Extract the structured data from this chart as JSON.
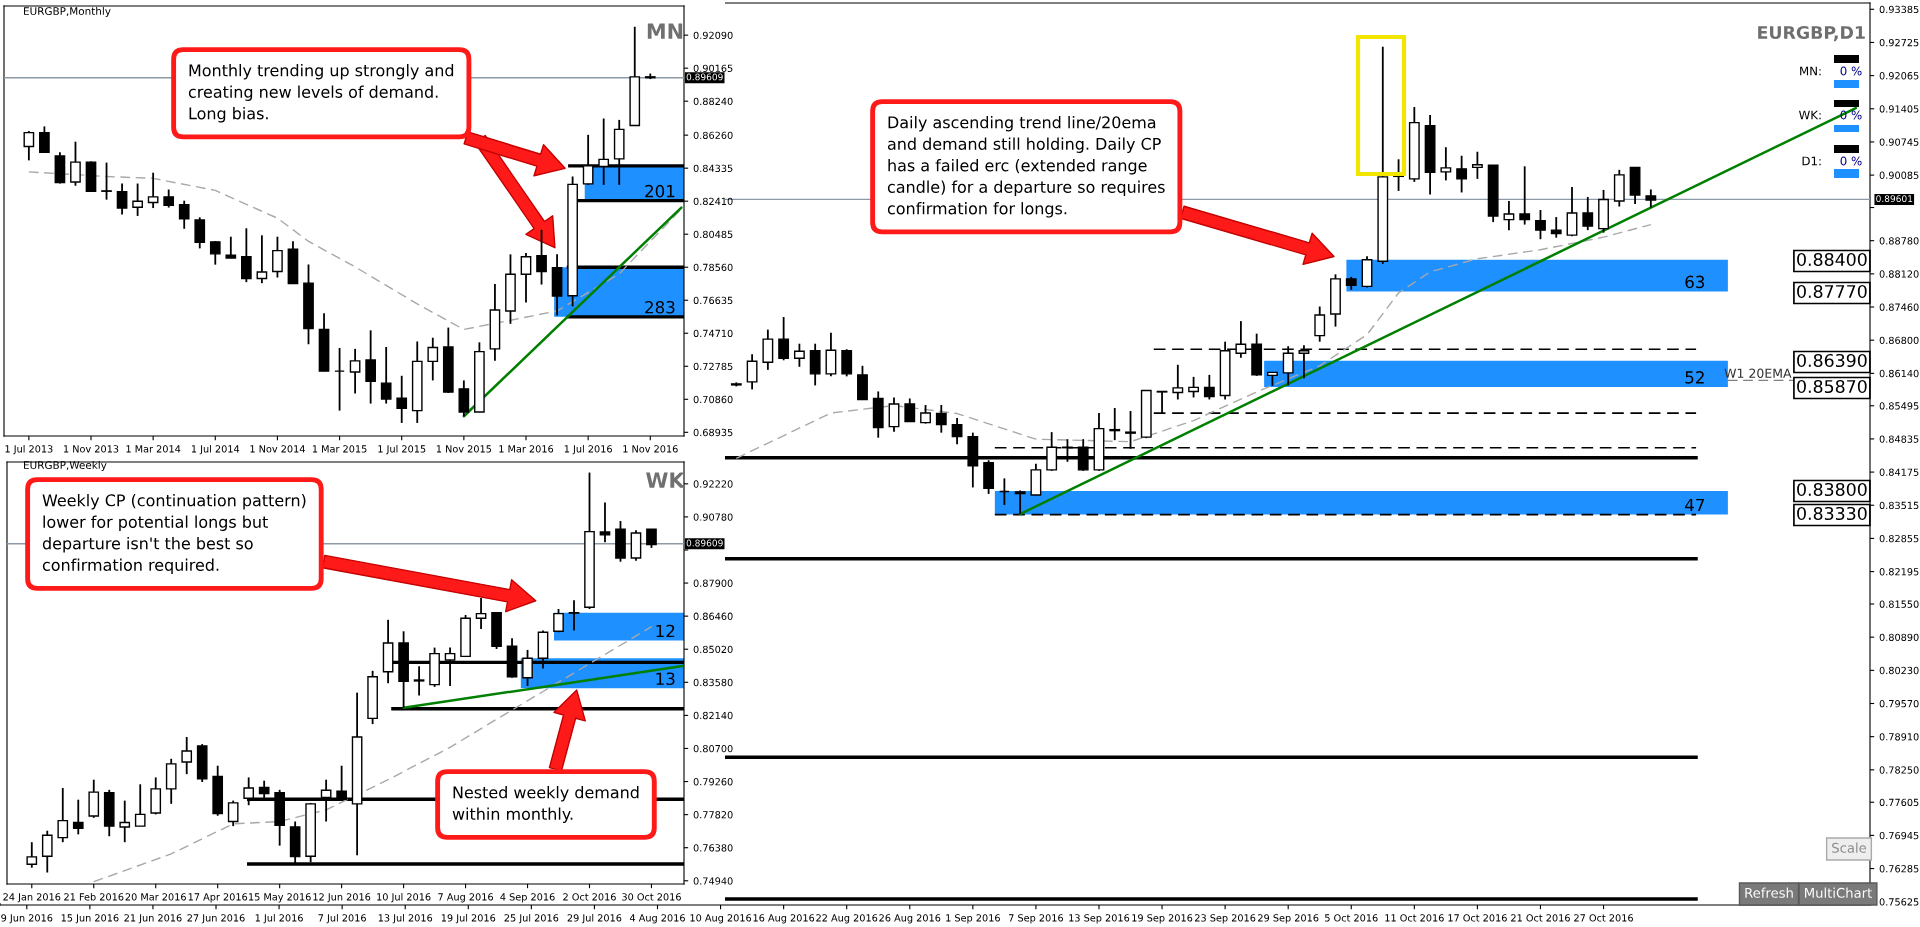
{
  "chart_data": [
    {
      "type": "candlestick",
      "title": "EURGBP,Monthly",
      "categories": [
        "1 Jul 2013",
        null,
        null,
        null,
        "1 Nov 2013",
        null,
        null,
        null,
        "1 Mar 2014",
        null,
        null,
        null,
        "1 Jul 2014",
        null,
        null,
        null,
        "1 Nov 2014",
        null,
        null,
        null,
        "1 Mar 2015",
        null,
        null,
        null,
        "1 Jul 2015",
        null,
        null,
        null,
        "1 Nov 2015",
        null,
        null,
        null,
        "1 Mar 2016",
        null,
        null,
        null,
        "1 Jul 2016",
        null,
        null,
        null,
        "1 Nov 2016",
        null,
        null
      ],
      "ohlc": [
        [
          0.856,
          0.865,
          0.8479,
          0.8641
        ],
        [
          0.8641,
          0.8677,
          0.8526,
          0.8526
        ],
        [
          0.8505,
          0.8526,
          0.8344,
          0.835
        ],
        [
          0.8353,
          0.8588,
          0.8331,
          0.8469
        ],
        [
          0.8469,
          0.8472,
          0.8296,
          0.8299
        ],
        [
          0.8301,
          0.8466,
          0.825,
          0.8299
        ],
        [
          0.8296,
          0.8344,
          0.8163,
          0.8201
        ],
        [
          0.8206,
          0.8344,
          0.8155,
          0.8241
        ],
        [
          0.8233,
          0.8407,
          0.8201,
          0.8266
        ],
        [
          0.8266,
          0.8309,
          0.8204,
          0.8217
        ],
        [
          0.822,
          0.8244,
          0.808,
          0.8139
        ],
        [
          0.8131,
          0.8147,
          0.7966,
          0.8001
        ],
        [
          0.8004,
          0.8009,
          0.7871,
          0.7934
        ],
        [
          0.7926,
          0.8034,
          0.7909,
          0.791
        ],
        [
          0.7918,
          0.8083,
          0.7769,
          0.779
        ],
        [
          0.779,
          0.8042,
          0.7763,
          0.7828
        ],
        [
          0.7831,
          0.8034,
          0.7796,
          0.7953
        ],
        [
          0.7961,
          0.8007,
          0.7758,
          0.7761
        ],
        [
          0.7763,
          0.7872,
          0.7407,
          0.7499
        ],
        [
          0.7493,
          0.7588,
          0.725,
          0.725
        ],
        [
          0.725,
          0.7385,
          0.702,
          0.725
        ],
        [
          0.7245,
          0.738,
          0.712,
          0.731
        ],
        [
          0.7315,
          0.7488,
          0.7061,
          0.7191
        ],
        [
          0.718,
          0.7391,
          0.7061,
          0.7088
        ],
        [
          0.7093,
          0.7223,
          0.6948,
          0.7034
        ],
        [
          0.702,
          0.7423,
          0.6948,
          0.7307
        ],
        [
          0.7307,
          0.7445,
          0.7196,
          0.7388
        ],
        [
          0.7391,
          0.7504,
          0.7123,
          0.7128
        ],
        [
          0.7147,
          0.7196,
          0.6987,
          0.7012
        ],
        [
          0.7012,
          0.7418,
          0.7012,
          0.7364
        ],
        [
          0.738,
          0.7758,
          0.731,
          0.7607
        ],
        [
          0.7601,
          0.7931,
          0.7526,
          0.7815
        ],
        [
          0.7815,
          0.7939,
          0.765,
          0.7917
        ],
        [
          0.7923,
          0.8074,
          0.7755,
          0.7831
        ],
        [
          0.7853,
          0.7931,
          0.7574,
          0.7688
        ],
        [
          0.769,
          0.8385,
          0.7628,
          0.8339
        ],
        [
          0.8342,
          0.8628,
          0.8336,
          0.8447
        ],
        [
          0.8444,
          0.8723,
          0.8336,
          0.8485
        ],
        [
          0.8488,
          0.8715,
          0.8336,
          0.866
        ],
        [
          0.8682,
          0.9258,
          0.8682,
          0.8966
        ],
        [
          0.8966,
          0.8985,
          0.8953,
          0.8961
        ],
        null,
        null
      ],
      "series": [
        {
          "type": "line",
          "color": "#a8a8a8",
          "line_style": "dashed",
          "values": [
            0.8412,
            null,
            null,
            null,
            null,
            0.8385,
            null,
            null,
            0.8374,
            null,
            null,
            null,
            0.8304,
            null,
            null,
            null,
            0.8142,
            null,
            0.8007,
            null,
            null,
            0.7858,
            null,
            null,
            null,
            0.7642,
            null,
            null,
            0.7493,
            null,
            null,
            0.7547,
            null,
            null,
            0.7601,
            null,
            null,
            null,
            0.7817,
            null,
            null,
            null,
            0.8196
          ]
        },
        {
          "type": "line",
          "color": "#008000",
          "values": [
            null,
            null,
            null,
            null,
            null,
            null,
            null,
            null,
            null,
            null,
            null,
            null,
            null,
            null,
            null,
            null,
            null,
            null,
            null,
            null,
            null,
            null,
            null,
            null,
            null,
            null,
            null,
            null,
            0.6987,
            null,
            null,
            null,
            null,
            null,
            null,
            null,
            null,
            null,
            null,
            null,
            null,
            null,
            0.8204
          ]
        }
      ],
      "ylim": [
        0.6872,
        0.9379
      ],
      "yticks": [
        {
          "value": 0.9209,
          "label": "0.92090"
        },
        0.90165,
        {
          "value": 0.8824,
          "label": "0.88240"
        },
        {
          "value": 0.8626,
          "label": "0.86260"
        },
        0.84335,
        {
          "value": 0.8241,
          "label": "0.82410"
        },
        0.80485,
        {
          "value": 0.7856,
          "label": "0.78560"
        },
        0.76635,
        {
          "value": 0.7471,
          "label": "0.74710"
        },
        0.72785,
        {
          "value": 0.7086,
          "label": "0.70860"
        },
        0.68935
      ],
      "bands": [
        {
          "axis": "y",
          "from": 0.8244,
          "to": 0.8447,
          "label": "201",
          "color": "#1e90ff"
        },
        {
          "axis": "y",
          "from": 0.7567,
          "to": 0.7856,
          "label": "283",
          "color": "#1e90ff"
        }
      ],
      "ref_lines": [
        {
          "axis": "y",
          "value": 0.89609,
          "label": "0.89609",
          "color": "#8c99a6"
        },
        {
          "axis": "y",
          "value": 0.8447,
          "color": "#000000"
        },
        {
          "axis": "y",
          "value": 0.8244,
          "color": "#000000"
        },
        {
          "axis": "y",
          "value": 0.7856,
          "color": "#000000"
        },
        {
          "axis": "y",
          "value": 0.7567,
          "color": "#000000"
        }
      ],
      "annotations": [
        "MN",
        "Monthly trending up strongly and\ncreating new levels of demand.\nLong bias."
      ]
    },
    {
      "type": "candlestick",
      "title": "EURGBP,Weekly",
      "categories": [
        "24 Jan 2016",
        null,
        null,
        null,
        "21 Feb 2016",
        null,
        null,
        null,
        "20 Mar 2016",
        null,
        null,
        null,
        "17 Apr 2016",
        null,
        null,
        null,
        "15 May 2016",
        null,
        null,
        null,
        "12 Jun 2016",
        null,
        null,
        null,
        "10 Jul 2016",
        null,
        null,
        null,
        "7 Aug 2016",
        null,
        null,
        null,
        "4 Sep 2016",
        null,
        null,
        null,
        "2 Oct 2016",
        null,
        null,
        null,
        "30 Oct 2016",
        null,
        null
      ],
      "ohlc": [
        [
          0.7566,
          0.7662,
          0.7551,
          0.7598
        ],
        [
          0.7601,
          0.7712,
          0.753,
          0.7692
        ],
        [
          0.7682,
          0.7898,
          0.7662,
          0.7756
        ],
        [
          0.7748,
          0.7847,
          0.7696,
          0.7722
        ],
        [
          0.7776,
          0.7934,
          0.7768,
          0.788
        ],
        [
          0.7878,
          0.789,
          0.7688,
          0.7732
        ],
        [
          0.7728,
          0.7843,
          0.7662,
          0.7748
        ],
        [
          0.7732,
          0.7914,
          0.7732,
          0.7783
        ],
        [
          0.7789,
          0.7944,
          0.7783,
          0.7894
        ],
        [
          0.7894,
          0.8025,
          0.7829,
          0.8003
        ],
        [
          0.8011,
          0.812,
          0.7958,
          0.8059
        ],
        [
          0.8081,
          0.8089,
          0.7924,
          0.7938
        ],
        [
          0.7948,
          0.7995,
          0.7777,
          0.7787
        ],
        [
          0.7752,
          0.7843,
          0.7732,
          0.7833
        ],
        [
          0.7853,
          0.7944,
          0.7823,
          0.7898
        ],
        [
          0.79,
          0.793,
          0.7853,
          0.7874
        ],
        [
          0.7878,
          0.789,
          0.7647,
          0.7736
        ],
        [
          0.7728,
          0.7752,
          0.7567,
          0.7599
        ],
        [
          0.7601,
          0.7833,
          0.7575,
          0.7829
        ],
        [
          0.7857,
          0.7934,
          0.7752,
          0.7888
        ],
        [
          0.7884,
          0.7995,
          0.7843,
          0.7849
        ],
        [
          0.7829,
          0.8313,
          0.7605,
          0.812
        ],
        [
          0.8201,
          0.8408,
          0.8176,
          0.8382
        ],
        [
          0.8404,
          0.863,
          0.8354,
          0.8529
        ],
        [
          0.8529,
          0.858,
          0.8247,
          0.8362
        ],
        [
          0.8364,
          0.8428,
          0.8301,
          0.8368
        ],
        [
          0.8348,
          0.8509,
          0.8338,
          0.8483
        ],
        [
          0.8455,
          0.8509,
          0.8342,
          0.8483
        ],
        [
          0.8471,
          0.8651,
          0.8469,
          0.8637
        ],
        [
          0.8637,
          0.8725,
          0.859,
          0.8657
        ],
        [
          0.8661,
          0.8661,
          0.8503,
          0.8515
        ],
        [
          0.8515,
          0.855,
          0.8378,
          0.8382
        ],
        [
          0.8378,
          0.8499,
          0.8342,
          0.8463
        ],
        [
          0.8463,
          0.8584,
          0.8418,
          0.8576
        ],
        [
          0.858,
          0.8677,
          0.8576,
          0.8657
        ],
        [
          0.8659,
          0.8715,
          0.8584,
          0.8661
        ],
        [
          0.8685,
          0.9271,
          0.8677,
          0.9014
        ],
        [
          0.9012,
          0.9141,
          0.8968,
          0.9
        ],
        [
          0.9024,
          0.906,
          0.8883,
          0.8899
        ],
        [
          0.8899,
          0.902,
          0.8887,
          0.9008
        ],
        [
          0.9024,
          0.9024,
          0.8943,
          0.8958
        ],
        null,
        null
      ],
      "series": [
        {
          "type": "line",
          "color": "#a8a8a8",
          "line_style": "dashed",
          "values": [
            null,
            null,
            null,
            null,
            0.749,
            null,
            null,
            null,
            null,
            0.7611,
            null,
            null,
            null,
            0.7742,
            null,
            null,
            0.7752,
            null,
            null,
            0.7803,
            null,
            null,
            null,
            0.7934,
            null,
            null,
            null,
            0.8075,
            null,
            null,
            0.8197,
            null,
            null,
            0.8318,
            null,
            null,
            0.8439,
            null,
            null,
            null,
            0.86,
            null,
            null
          ]
        },
        {
          "type": "line",
          "color": "#008000",
          "values": [
            null,
            null,
            null,
            null,
            null,
            null,
            null,
            null,
            null,
            null,
            null,
            null,
            null,
            null,
            null,
            null,
            null,
            null,
            null,
            null,
            null,
            null,
            null,
            null,
            0.8247,
            null,
            null,
            null,
            null,
            null,
            null,
            null,
            null,
            null,
            null,
            null,
            null,
            null,
            null,
            null,
            null,
            null,
            0.8429
          ]
        }
      ],
      "ylim": [
        0.748,
        0.9317
      ],
      "yticks": [
        {
          "value": 0.9222,
          "label": "0.92220"
        },
        {
          "value": 0.9078,
          "label": "0.90780"
        },
        {
          "value": 0.8934,
          "label": null
        },
        {
          "value": 0.879,
          "label": "0.87900"
        },
        {
          "value": 0.8646,
          "label": "0.86460"
        },
        {
          "value": 0.8502,
          "label": "0.85020"
        },
        {
          "value": 0.8358,
          "label": "0.83580"
        },
        {
          "value": 0.8214,
          "label": "0.82140"
        },
        {
          "value": 0.807,
          "label": "0.80700"
        },
        {
          "value": 0.7926,
          "label": "0.79260"
        },
        {
          "value": 0.7782,
          "label": "0.77820"
        },
        {
          "value": 0.7638,
          "label": "0.76380"
        },
        {
          "value": 0.7494,
          "label": "0.74940"
        }
      ],
      "bands": [
        {
          "axis": "y",
          "from": 0.854,
          "to": 0.8661,
          "label": "12",
          "color": "#1e90ff"
        },
        {
          "axis": "y",
          "from": 0.8332,
          "to": 0.8463,
          "label": "13",
          "color": "#1e90ff"
        }
      ],
      "ref_lines": [
        {
          "axis": "y",
          "value": 0.89609,
          "label": "0.89609",
          "color": "#8c99a6"
        },
        {
          "axis": "y",
          "value": 0.8445,
          "color": "#000000"
        },
        {
          "axis": "y",
          "value": 0.8243,
          "color": "#000000"
        },
        {
          "axis": "y",
          "value": 0.7849,
          "color": "#000000"
        },
        {
          "axis": "y",
          "value": 0.7567,
          "color": "#000000"
        }
      ],
      "annotations": [
        "WK",
        "Weekly CP (continuation pattern)\nlower for potential longs but\ndeparture isn't the best so\nconfirmation required.",
        "Nested weekly demand\nwithin monthly."
      ]
    },
    {
      "type": "candlestick",
      "title": "EURGBP,D1",
      "categories": [
        "9 Jun 2016",
        null,
        null,
        null,
        "15 Jun 2016",
        null,
        null,
        null,
        "21 Jun 2016",
        null,
        null,
        null,
        "27 Jun 2016",
        null,
        null,
        null,
        "1 Jul 2016",
        null,
        null,
        null,
        "7 Jul 2016",
        null,
        null,
        null,
        "13 Jul 2016",
        null,
        null,
        null,
        "19 Jul 2016",
        null,
        null,
        null,
        "25 Jul 2016",
        null,
        null,
        null,
        "29 Jul 2016",
        null,
        null,
        null,
        "4 Aug 2016",
        null,
        null,
        null,
        "10 Aug 2016",
        null,
        null,
        null,
        "16 Aug 2016",
        null,
        null,
        null,
        "22 Aug 2016",
        null,
        null,
        null,
        "26 Aug 2016",
        null,
        null,
        null,
        "1 Sep 2016",
        null,
        null,
        null,
        "7 Sep 2016",
        null,
        null,
        null,
        "13 Sep 2016",
        null,
        null,
        null,
        "19 Sep 2016",
        null,
        null,
        null,
        "23 Sep 2016",
        null,
        null,
        null,
        "29 Sep 2016",
        null,
        null,
        null,
        "5 Oct 2016",
        null,
        null,
        null,
        "11 Oct 2016",
        null,
        null,
        null,
        "17 Oct 2016",
        null,
        null,
        null,
        "21 Oct 2016",
        null,
        null,
        null,
        "27 Oct 2016",
        null,
        null,
        null,
        null,
        null,
        null,
        null,
        null,
        null,
        null,
        null,
        null,
        null,
        null,
        null,
        null
      ],
      "ohlc": [
        null,
        null,
        null,
        null,
        null,
        null,
        null,
        null,
        null,
        null,
        null,
        null,
        null,
        null,
        null,
        null,
        null,
        null,
        null,
        null,
        null,
        null,
        null,
        null,
        null,
        null,
        null,
        null,
        null,
        null,
        null,
        null,
        null,
        null,
        null,
        null,
        null,
        null,
        null,
        null,
        null,
        null,
        null,
        null,
        null,
        [
          0.8591,
          0.8596,
          0.8588,
          0.8593
        ],
        [
          0.8597,
          0.8652,
          0.8582,
          0.8638
        ],
        [
          0.8636,
          0.8701,
          0.8621,
          0.8682
        ],
        [
          0.8682,
          0.8726,
          0.864,
          0.8644
        ],
        [
          0.8644,
          0.8673,
          0.8627,
          0.8658
        ],
        [
          0.8659,
          0.8673,
          0.859,
          0.8613
        ],
        [
          0.8613,
          0.8695,
          0.8608,
          0.866
        ],
        [
          0.8659,
          0.8662,
          0.8608,
          0.8613
        ],
        [
          0.8611,
          0.8629,
          0.8562,
          0.8562
        ],
        [
          0.8564,
          0.8578,
          0.8486,
          0.8506
        ],
        [
          0.8508,
          0.8566,
          0.8498,
          0.8553
        ],
        [
          0.8553,
          0.8564,
          0.8518,
          0.8518
        ],
        [
          0.8516,
          0.8551,
          0.8514,
          0.8535
        ],
        [
          0.8534,
          0.8551,
          0.8496,
          0.8512
        ],
        [
          0.8512,
          0.8525,
          0.8473,
          0.8488
        ],
        [
          0.8488,
          0.8496,
          0.8387,
          0.843
        ],
        [
          0.8436,
          0.8441,
          0.8374,
          0.8385
        ],
        [
          0.8379,
          0.8405,
          0.8352,
          0.8379
        ],
        [
          0.8378,
          0.8381,
          0.8334,
          0.8375
        ],
        [
          0.8372,
          0.8434,
          0.8372,
          0.8422
        ],
        [
          0.8422,
          0.8497,
          0.842,
          0.8467
        ],
        [
          0.8466,
          0.8483,
          0.8438,
          0.8467
        ],
        [
          0.8467,
          0.8483,
          0.842,
          0.8422
        ],
        [
          0.8422,
          0.8535,
          0.842,
          0.8504
        ],
        [
          0.85,
          0.8545,
          0.8481,
          0.8502
        ],
        [
          0.8495,
          0.8539,
          0.8464,
          0.8497
        ],
        [
          0.8487,
          0.858,
          0.8485,
          0.858
        ],
        [
          0.8578,
          0.8578,
          0.8534,
          0.8577
        ],
        [
          0.8576,
          0.8631,
          0.8562,
          0.8585
        ],
        [
          0.8578,
          0.8607,
          0.8566,
          0.8586
        ],
        [
          0.8586,
          0.8611,
          0.8562,
          0.8568
        ],
        [
          0.857,
          0.8677,
          0.8562,
          0.8659
        ],
        [
          0.8654,
          0.8718,
          0.8645,
          0.8672
        ],
        [
          0.8672,
          0.8693,
          0.8609,
          0.8611
        ],
        [
          0.861,
          0.8616,
          0.8589,
          0.8616
        ],
        [
          0.8615,
          0.8668,
          0.859,
          0.8654
        ],
        [
          0.8654,
          0.867,
          0.8604,
          0.8659
        ],
        [
          0.8689,
          0.8747,
          0.8677,
          0.873
        ],
        [
          0.8732,
          0.8811,
          0.8707,
          0.8802
        ],
        [
          0.8802,
          0.8806,
          0.878,
          0.8789
        ],
        [
          0.8787,
          0.8847,
          0.8785,
          0.884
        ],
        [
          0.8837,
          0.9264,
          0.8832,
          0.9005
        ],
        [
          0.9006,
          0.904,
          0.8977,
          0.9008
        ],
        [
          0.9001,
          0.9144,
          0.8995,
          0.9113
        ],
        [
          0.9107,
          0.9128,
          0.897,
          0.9014
        ],
        [
          0.9015,
          0.9064,
          0.8998,
          0.9023
        ],
        [
          0.9021,
          0.9047,
          0.8974,
          0.9001
        ],
        [
          0.9024,
          0.9055,
          0.9001,
          0.9029
        ],
        [
          0.9028,
          0.9028,
          0.8915,
          0.8927
        ],
        [
          0.892,
          0.8957,
          0.8899,
          0.8931
        ],
        [
          0.8931,
          0.9026,
          0.891,
          0.892
        ],
        [
          0.8918,
          0.8939,
          0.8881,
          0.8899
        ],
        [
          0.8899,
          0.8925,
          0.8884,
          0.8892
        ],
        [
          0.8889,
          0.8985,
          0.8887,
          0.8933
        ],
        [
          0.8933,
          0.8965,
          0.8899,
          0.8907
        ],
        [
          0.8902,
          0.8979,
          0.8894,
          0.896
        ],
        [
          0.8957,
          0.9019,
          0.8946,
          0.9009
        ],
        [
          0.9024,
          0.9024,
          0.8951,
          0.8969
        ],
        [
          0.8967,
          0.898,
          0.8944,
          0.8959
        ],
        null,
        null,
        null,
        null,
        null,
        null,
        null,
        null,
        null,
        null,
        null,
        null,
        null
      ],
      "series": [
        {
          "type": "line",
          "color": "#a8a8a8",
          "line_style": "dashed",
          "values": [
            null,
            null,
            null,
            null,
            null,
            null,
            null,
            null,
            null,
            null,
            null,
            null,
            null,
            null,
            null,
            null,
            null,
            null,
            null,
            null,
            null,
            null,
            null,
            null,
            null,
            null,
            null,
            null,
            null,
            null,
            null,
            null,
            null,
            null,
            null,
            null,
            null,
            null,
            null,
            null,
            null,
            null,
            null,
            null,
            null,
            0.8445,
            null,
            null,
            null,
            null,
            null,
            0.8535,
            null,
            null,
            null,
            0.855,
            null,
            null,
            null,
            0.8534,
            null,
            null,
            null,
            null,
            0.8483,
            null,
            null,
            null,
            null,
            null,
            0.8478,
            null,
            null,
            null,
            0.852,
            null,
            null,
            null,
            0.8577,
            null,
            null,
            null,
            0.8629,
            null,
            null,
            0.8691,
            null,
            0.8774,
            null,
            0.8816,
            null,
            null,
            0.8842,
            null,
            null,
            null,
            0.886,
            null,
            null,
            null,
            0.8885,
            null,
            null,
            0.891,
            null,
            null,
            null,
            null,
            null,
            null,
            null,
            null,
            null,
            null,
            null,
            null,
            null
          ]
        },
        {
          "type": "line",
          "color": "#008000",
          "values": [
            null,
            null,
            null,
            null,
            null,
            null,
            null,
            null,
            null,
            null,
            null,
            null,
            null,
            null,
            null,
            null,
            null,
            null,
            null,
            null,
            null,
            null,
            null,
            null,
            null,
            null,
            null,
            null,
            null,
            null,
            null,
            null,
            null,
            null,
            null,
            null,
            null,
            null,
            null,
            null,
            null,
            null,
            null,
            null,
            null,
            null,
            null,
            null,
            null,
            null,
            null,
            null,
            null,
            null,
            null,
            null,
            null,
            null,
            null,
            null,
            null,
            null,
            null,
            0.8334,
            null,
            null,
            null,
            null,
            null,
            null,
            null,
            null,
            null,
            null,
            null,
            null,
            null,
            null,
            null,
            null,
            null,
            null,
            null,
            null,
            null,
            null,
            null,
            null,
            null,
            null,
            null,
            null,
            null,
            null,
            null,
            null,
            null,
            null,
            null,
            null,
            null,
            null,
            null,
            null,
            null,
            null,
            null,
            null,
            null,
            null,
            null,
            null,
            null,
            null,
            null,
            null,
            0.9142
          ]
        }
      ],
      "ylim": [
        0.7556,
        0.9351
      ],
      "yticks": [
        0.93385,
        {
          "value": 0.92725,
          "label": "0.92725"
        },
        {
          "value": 0.92065,
          "label": "0.92065"
        },
        0.91405,
        0.90745,
        0.90085,
        {
          "value": 0.8944,
          "label": null
        },
        {
          "value": 0.8878,
          "label": "0.88780"
        },
        {
          "value": 0.8812,
          "label": "0.88120"
        },
        {
          "value": 0.8746,
          "label": "0.87460"
        },
        {
          "value": 0.868,
          "label": "0.86800"
        },
        {
          "value": 0.8614,
          "label": "0.86140"
        },
        0.85495,
        0.84835,
        0.84175,
        0.83515,
        0.82855,
        0.82195,
        {
          "value": 0.8155,
          "label": "0.81550"
        },
        {
          "value": 0.8089,
          "label": "0.80890"
        },
        {
          "value": 0.8023,
          "label": "0.80230"
        },
        {
          "value": 0.7957,
          "label": "0.79570"
        },
        {
          "value": 0.7891,
          "label": "0.78910"
        },
        {
          "value": 0.7825,
          "label": "0.78250"
        },
        0.77605,
        0.76945,
        0.76285,
        0.75625
      ],
      "bands": [
        {
          "axis": "y",
          "from": 0.8777,
          "to": 0.884,
          "label": "63",
          "color": "#1e90ff"
        },
        {
          "axis": "y",
          "from": 0.8587,
          "to": 0.8639,
          "label": "52",
          "color": "#1e90ff"
        },
        {
          "axis": "y",
          "from": 0.8333,
          "to": 0.838,
          "label": "47",
          "color": "#1e90ff"
        }
      ],
      "ref_lines": [
        {
          "axis": "y",
          "value": 0.89601,
          "label": "0.89601",
          "color": "#8c99a6"
        },
        {
          "axis": "y",
          "value": 0.86,
          "label": "W1 20EMA",
          "color": "#808080",
          "line_style": "dashed"
        },
        {
          "axis": "y",
          "value": 0.8446,
          "color": "#000000"
        },
        {
          "axis": "y",
          "value": 0.8245,
          "color": "#000000"
        },
        {
          "axis": "y",
          "value": 0.785,
          "color": "#000000"
        },
        {
          "axis": "y",
          "value": 0.7568,
          "color": "#000000"
        },
        {
          "axis": "y",
          "value": 0.8662,
          "color": "#000000",
          "line_style": "dashed"
        },
        {
          "axis": "y",
          "value": 0.8535,
          "color": "#000000",
          "line_style": "dashed"
        },
        {
          "axis": "y",
          "value": 0.8466,
          "color": "#000000",
          "line_style": "dashed"
        },
        {
          "axis": "y",
          "value": 0.8333,
          "color": "#000000",
          "line_style": "dashed"
        }
      ],
      "annotations": [
        "Daily ascending trend line/20ema\nand demand still holding. Daily CP\nhas a failed erc (extended range\ncandle) for a departure so requires\nconfirmation for longs.",
        "MN:",
        "0 %",
        "WK:",
        "0 %",
        "D1:",
        "0 %",
        "Scale",
        "Refresh",
        "MultiChart",
        "0.88400",
        "0.87770",
        "0.86390",
        "0.85870",
        "0.83800",
        "0.83330"
      ]
    }
  ]
}
